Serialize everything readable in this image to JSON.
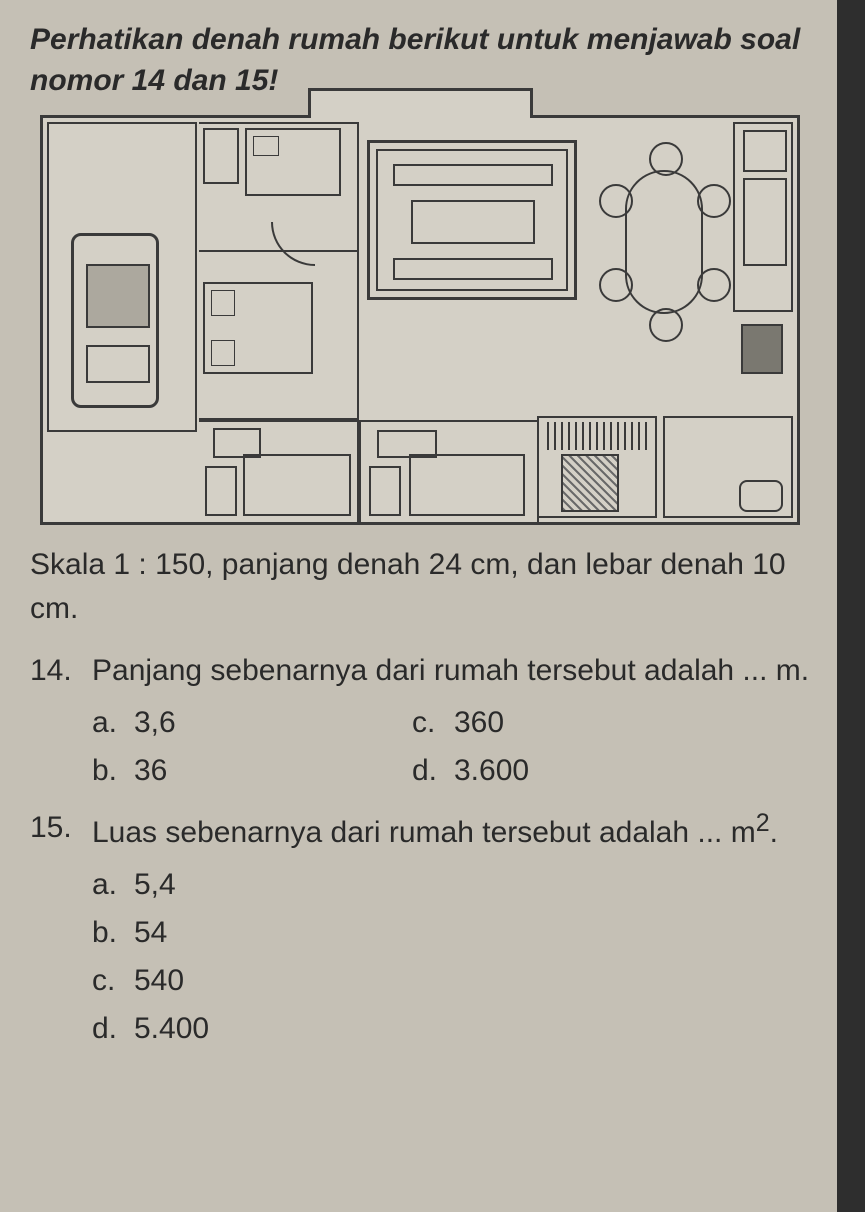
{
  "instruction": "Perhatikan denah rumah berikut untuk menjawab soal nomor 14 dan 15!",
  "caption": "Skala 1 : 150, panjang denah 24 cm, dan lebar denah 10 cm.",
  "floorplan": {
    "scale": "1 : 150",
    "length_cm": 24,
    "width_cm": 10,
    "border_color": "#3a3a3a",
    "background_color": "#d4d0c6"
  },
  "q14": {
    "number": "14.",
    "text": "Panjang sebenarnya dari rumah tersebut adalah ... m.",
    "options": {
      "a": {
        "label": "a.",
        "value": "3,6"
      },
      "b": {
        "label": "b.",
        "value": "36"
      },
      "c": {
        "label": "c.",
        "value": "360"
      },
      "d": {
        "label": "d.",
        "value": "3.600"
      }
    }
  },
  "q15": {
    "number": "15.",
    "text_prefix": "Luas sebenarnya dari rumah tersebut adalah ... m",
    "text_suffix": ".",
    "exponent": "2",
    "options": {
      "a": {
        "label": "a.",
        "value": "5,4"
      },
      "b": {
        "label": "b.",
        "value": "54"
      },
      "c": {
        "label": "c.",
        "value": "540"
      },
      "d": {
        "label": "d.",
        "value": "5.400"
      }
    }
  },
  "colors": {
    "page_bg": "#c5c0b5",
    "text": "#2a2a2a",
    "sidebar": "#2e2e2e"
  },
  "typography": {
    "body_fontsize_pt": 22,
    "instruction_italic": true,
    "instruction_bold": true
  }
}
